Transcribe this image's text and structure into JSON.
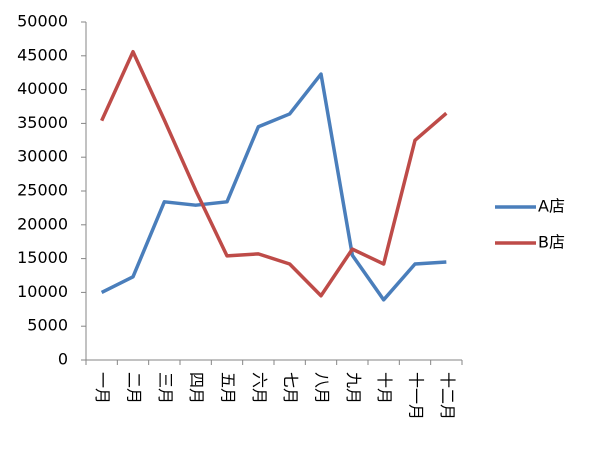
{
  "chart_data": {
    "type": "line",
    "categories": [
      "一月",
      "二月",
      "三月",
      "四月",
      "五月",
      "六月",
      "七月",
      "八月",
      "九月",
      "十月",
      "十一月",
      "十二月"
    ],
    "series": [
      {
        "name": "A店",
        "color": "#4a7ebb",
        "values": [
          10000,
          12300,
          23400,
          22900,
          23400,
          34500,
          36400,
          42300,
          15500,
          8900,
          14200,
          14500
        ]
      },
      {
        "name": "B店",
        "color": "#be4b48",
        "values": [
          35400,
          45600,
          35500,
          25100,
          15400,
          15700,
          14200,
          9500,
          16400,
          14200,
          32500,
          36500
        ]
      }
    ],
    "ylim": [
      0,
      50000
    ],
    "yticks": [
      0,
      5000,
      10000,
      15000,
      20000,
      25000,
      30000,
      35000,
      40000,
      45000,
      50000
    ],
    "legend": "right"
  }
}
